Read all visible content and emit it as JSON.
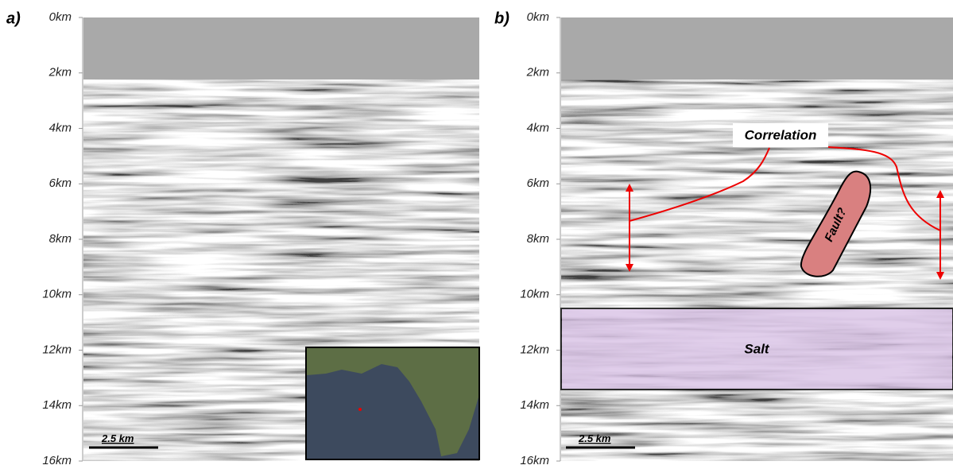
{
  "panels": [
    {
      "label": "a)",
      "depth_labels": [
        "0km",
        "2km",
        "4km",
        "6km",
        "8km",
        "10km",
        "12km",
        "14km",
        "16km"
      ],
      "scale_bar": "2.5 km"
    },
    {
      "label": "b)",
      "depth_labels": [
        "0km",
        "2km",
        "4km",
        "6km",
        "8km",
        "10km",
        "12km",
        "14km",
        "16km"
      ],
      "scale_bar": "2.5 km",
      "annotations": {
        "correlation": "Correlation",
        "fault": "Fault?",
        "salt": "Salt"
      }
    }
  ]
}
